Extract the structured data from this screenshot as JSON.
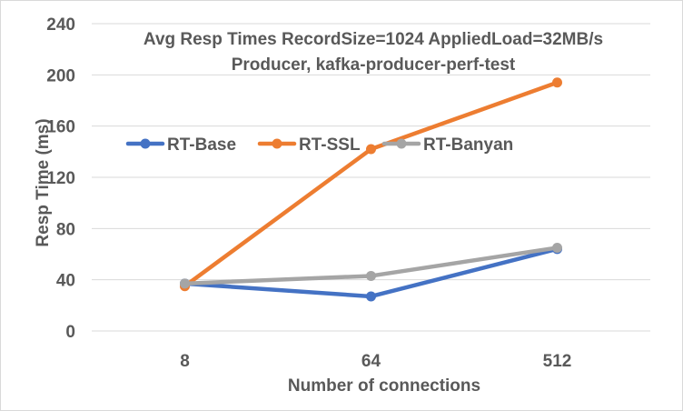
{
  "chart_data": {
    "type": "line",
    "title": "Avg Resp Times RecordSize=1024 AppliedLoad=32MB/s",
    "subtitle": "Producer, kafka-producer-perf-test",
    "xlabel": "Number of connections",
    "ylabel": "Resp Time (ms)",
    "categories": [
      "8",
      "64",
      "512"
    ],
    "ylim": [
      0,
      240
    ],
    "yticks": [
      0,
      40,
      80,
      120,
      160,
      200,
      240
    ],
    "grid": true,
    "legend_position": "left",
    "series": [
      {
        "name": "RT-Base",
        "values": [
          37,
          27,
          64
        ],
        "color": "#4472c4"
      },
      {
        "name": "RT-SSL",
        "values": [
          35,
          142,
          194
        ],
        "color": "#ed7d31"
      },
      {
        "name": "RT-Banyan",
        "values": [
          37,
          43,
          65
        ],
        "color": "#a5a5a5"
      }
    ]
  }
}
